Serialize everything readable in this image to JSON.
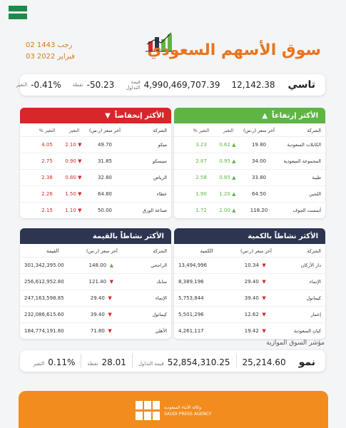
{
  "date": {
    "hijri": "02 رجب 1443",
    "gregorian": "03 فبراير 2022"
  },
  "title": "سوق الأسهم السعودي",
  "tasi": {
    "name": "تاسي",
    "index": "12,142.38",
    "turnover_label": "قيمة التداول",
    "turnover": "4,990,469,707.39",
    "points_label": "نقطة",
    "points": "-50.23",
    "change_label": "التغير",
    "change": "-0.41%"
  },
  "gainers": {
    "title": "الأكثر إرتفاعاً",
    "headers": [
      "الشركة",
      "آخر سعر (ر.س)",
      "التغير",
      "التغير %"
    ],
    "rows": [
      {
        "company": "الكابلات السعودية",
        "price": "19.80",
        "change": "0.62",
        "pct": "3.23"
      },
      {
        "company": "المجموعة السعودية",
        "price": "34.00",
        "change": "0.95",
        "pct": "2.87"
      },
      {
        "company": "طيبة",
        "price": "33.80",
        "change": "0.85",
        "pct": "2.58"
      },
      {
        "company": "اللجين",
        "price": "64.50",
        "change": "1.20",
        "pct": "1.90"
      },
      {
        "company": "أسمنت الجوف",
        "price": "118.20",
        "change": "2.00",
        "pct": "1.72"
      }
    ]
  },
  "losers": {
    "title": "الأكثر إنخفاضاً",
    "headers": [
      "الشركة",
      "آخر سعر (ر.س)",
      "التغير",
      "التغير %"
    ],
    "rows": [
      {
        "company": "ميكو",
        "price": "49.70",
        "change": "2.10",
        "pct": "4.05"
      },
      {
        "company": "سيسكو",
        "price": "31.85",
        "change": "0.90",
        "pct": "2.75"
      },
      {
        "company": "الرياض",
        "price": "32.80",
        "change": "0.80",
        "pct": "2.38"
      },
      {
        "company": "عطاء",
        "price": "64.80",
        "change": "1.50",
        "pct": "2.26"
      },
      {
        "company": "صناعة الورق",
        "price": "50.00",
        "change": "1.10",
        "pct": "2.15"
      }
    ]
  },
  "by_volume": {
    "title": "الأكثر نشاطاً بالكمية",
    "headers": [
      "الشركة",
      "آخر سعر (ر.س)",
      "الكمية"
    ],
    "rows": [
      {
        "company": "دار الأركان",
        "price": "10.34",
        "dir": "down",
        "total": "13,494,996"
      },
      {
        "company": "الإنماء",
        "price": "29.40",
        "dir": "down",
        "total": "8,389,196"
      },
      {
        "company": "كيمانول",
        "price": "39.40",
        "dir": "down",
        "total": "5,753,844"
      },
      {
        "company": "إعمار",
        "price": "12.62",
        "dir": "down",
        "total": "5,501,296"
      },
      {
        "company": "كيان السعودية",
        "price": "19.42",
        "dir": "down",
        "total": "4,261,117"
      }
    ]
  },
  "by_value": {
    "title": "الأكثر نشاطاً بالقيمة",
    "headers": [
      "الشركة",
      "آخر سعر (ر.س)",
      "القيمة"
    ],
    "rows": [
      {
        "company": "الراجحي",
        "price": "148.00",
        "dir": "up",
        "total": "301,342,395.00"
      },
      {
        "company": "سابك",
        "price": "121.40",
        "dir": "down",
        "total": "256,612,952.80"
      },
      {
        "company": "الإنماء",
        "price": "29.40",
        "dir": "down",
        "total": "247,163,598.85"
      },
      {
        "company": "كيمانول",
        "price": "39.40",
        "dir": "down",
        "total": "232,086,615.60"
      },
      {
        "company": "الأهلي",
        "price": "71.80",
        "dir": "down",
        "total": "184,774,191.80"
      }
    ]
  },
  "parallel": {
    "title": "مؤشر السوق الموازية",
    "name": "نمو",
    "index": "25,214.60",
    "turnover_label": "قيمة التداول",
    "turnover": "52,854,310.25",
    "points_label": "نقطة",
    "points": "28.01",
    "change_label": "التغير",
    "change": "0.11%"
  },
  "footer": {
    "logo_text": "واس SPA",
    "agency_ar": "وكالة الأنباء السعودية",
    "agency_en": "SAUDI PRESS AGENCY"
  },
  "colors": {
    "accent": "#e8741f",
    "gain": "#5fb544",
    "loss": "#d7272a",
    "dark": "#2d3550"
  }
}
